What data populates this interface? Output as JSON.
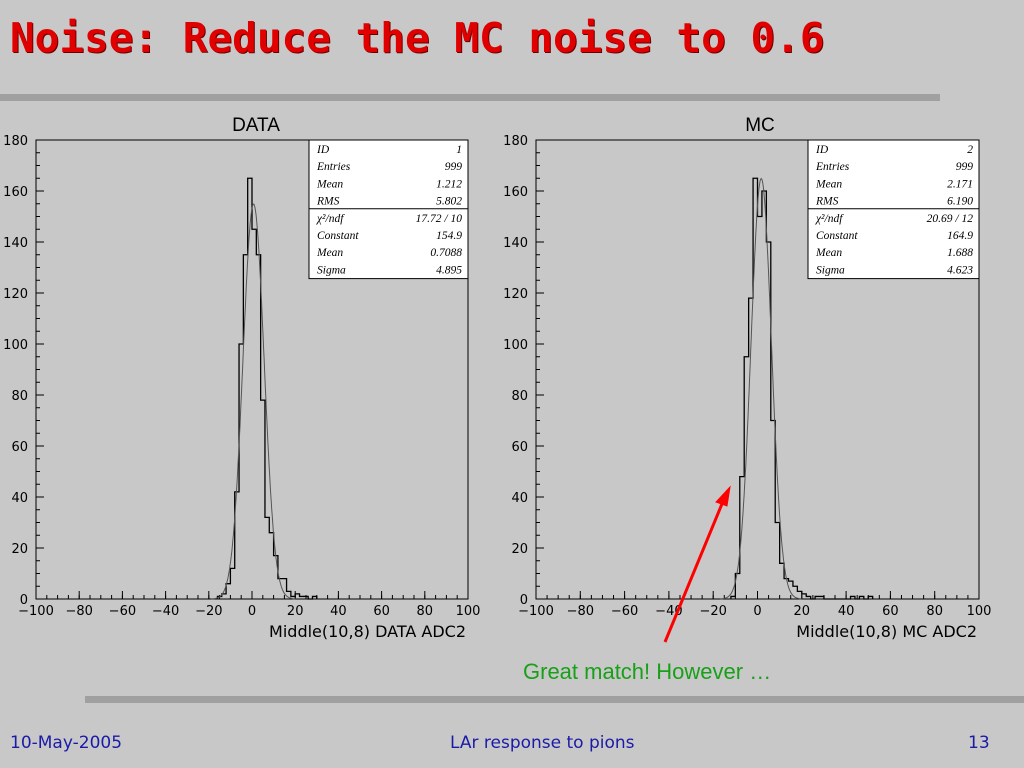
{
  "slide": {
    "title": "Noise: Reduce the MC noise to 0.6",
    "annotation": "Great match! However …",
    "footer_left": "10-May-2005",
    "footer_center": "LAr response to pions",
    "footer_right": "13",
    "colors": {
      "title": "#e00000",
      "annotation": "#18a018",
      "footer": "#1a1aa8",
      "arrow": "#ff0000",
      "background": "#c8c8c8"
    }
  },
  "chart_data": [
    {
      "type": "histogram",
      "heading": "DATA",
      "xlabel": "Middle(10,8) DATA ADC2",
      "xlim": [
        -100,
        100
      ],
      "ylim": [
        0,
        180
      ],
      "xticks": [
        -100,
        -80,
        -60,
        -40,
        -20,
        0,
        20,
        40,
        60,
        80,
        100
      ],
      "yticks": [
        0,
        20,
        40,
        60,
        80,
        100,
        120,
        140,
        160,
        180
      ],
      "bin_width": 2,
      "bins_x": [
        -16,
        -14,
        -12,
        -10,
        -8,
        -6,
        -4,
        -2,
        0,
        2,
        4,
        6,
        8,
        10,
        12,
        14,
        16,
        18,
        20,
        22,
        24,
        26,
        28
      ],
      "bins_y": [
        1,
        2,
        6,
        12,
        42,
        100,
        135,
        165,
        145,
        135,
        78,
        32,
        26,
        17,
        8,
        8,
        3,
        1,
        2,
        1,
        1,
        0,
        1
      ],
      "fit": {
        "constant": 154.9,
        "mean": 0.7088,
        "sigma": 4.895
      },
      "stats": [
        {
          "label": "ID",
          "value": "1"
        },
        {
          "label": "Entries",
          "value": "999"
        },
        {
          "label": "Mean",
          "value": "1.212"
        },
        {
          "label": "RMS",
          "value": "5.802"
        }
      ],
      "fit_stats": [
        {
          "label": "χ²/ndf",
          "value": "17.72   /   10"
        },
        {
          "label": "Constant",
          "value": "154.9"
        },
        {
          "label": "Mean",
          "value": "0.7088"
        },
        {
          "label": "Sigma",
          "value": "4.895"
        }
      ]
    },
    {
      "type": "histogram",
      "heading": "MC",
      "xlabel": "Middle(10,8) MC ADC2",
      "xlim": [
        -100,
        100
      ],
      "ylim": [
        0,
        180
      ],
      "xticks": [
        -100,
        -80,
        -60,
        -40,
        -20,
        0,
        20,
        40,
        60,
        80,
        100
      ],
      "yticks": [
        0,
        20,
        40,
        60,
        80,
        100,
        120,
        140,
        160,
        180
      ],
      "bin_width": 2,
      "bins_x": [
        -12,
        -10,
        -8,
        -6,
        -4,
        -2,
        0,
        2,
        4,
        6,
        8,
        10,
        12,
        14,
        16,
        18,
        20,
        22,
        24,
        26,
        28,
        30,
        32,
        34,
        36,
        38,
        40,
        42,
        44,
        46,
        48,
        50
      ],
      "bins_y": [
        1,
        10,
        48,
        95,
        118,
        165,
        150,
        160,
        140,
        70,
        30,
        14,
        8,
        7,
        5,
        3,
        2,
        1,
        0,
        1,
        1,
        0,
        0,
        0,
        0,
        0,
        0,
        1,
        0,
        1,
        0,
        1
      ],
      "fit": {
        "constant": 164.9,
        "mean": 1.688,
        "sigma": 4.623
      },
      "stats": [
        {
          "label": "ID",
          "value": "2"
        },
        {
          "label": "Entries",
          "value": "999"
        },
        {
          "label": "Mean",
          "value": "2.171"
        },
        {
          "label": "RMS",
          "value": "6.190"
        }
      ],
      "fit_stats": [
        {
          "label": "χ²/ndf",
          "value": "20.69   /   12"
        },
        {
          "label": "Constant",
          "value": "164.9"
        },
        {
          "label": "Mean",
          "value": "1.688"
        },
        {
          "label": "Sigma",
          "value": "4.623"
        }
      ]
    }
  ]
}
